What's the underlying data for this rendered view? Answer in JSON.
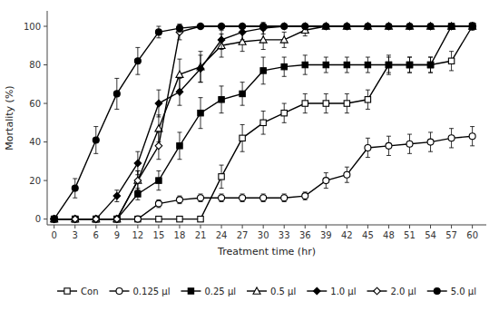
{
  "chart_data": {
    "type": "line",
    "xlabel": "Treatment time (hr)",
    "ylabel": "Mortality (%)",
    "x": [
      0,
      3,
      6,
      9,
      12,
      15,
      18,
      21,
      24,
      27,
      30,
      33,
      36,
      39,
      42,
      45,
      48,
      51,
      54,
      57,
      60
    ],
    "series": [
      {
        "name": "Con",
        "color": "black",
        "marker": "square-open",
        "values": [
          0,
          0,
          0,
          0,
          0,
          0,
          0,
          0,
          22,
          42,
          50,
          55,
          60,
          60,
          60,
          62,
          80,
          80,
          80,
          82,
          100
        ],
        "errors": [
          0,
          0,
          0,
          0,
          0,
          0,
          0,
          0,
          6,
          7,
          6,
          5,
          5,
          5,
          5,
          5,
          5,
          4,
          4,
          5,
          2
        ]
      },
      {
        "name": "0.125 μl",
        "color": "black",
        "marker": "circle-open",
        "values": [
          0,
          0,
          0,
          0,
          0,
          8,
          10,
          11,
          11,
          11,
          11,
          11,
          12,
          20,
          23,
          37,
          38,
          39,
          40,
          42,
          43
        ],
        "errors": [
          0,
          0,
          0,
          0,
          0,
          2,
          2,
          2,
          2,
          2,
          2,
          2,
          2,
          4,
          4,
          5,
          5,
          5,
          5,
          5,
          5
        ]
      },
      {
        "name": "0.25 μl",
        "color": "black",
        "marker": "square",
        "values": [
          0,
          0,
          0,
          0,
          13,
          20,
          38,
          55,
          62,
          65,
          77,
          79,
          80,
          80,
          80,
          80,
          80,
          80,
          80,
          100,
          100
        ],
        "errors": [
          0,
          0,
          0,
          0,
          3,
          5,
          7,
          8,
          7,
          6,
          7,
          5,
          5,
          4,
          4,
          4,
          4,
          4,
          4,
          0,
          0
        ]
      },
      {
        "name": "0.5 μl",
        "color": "black",
        "marker": "triangle-open",
        "values": [
          0,
          0,
          0,
          0,
          20,
          47,
          75,
          79,
          90,
          92,
          93,
          93,
          98,
          100,
          100,
          100,
          100,
          100,
          100,
          100,
          100
        ],
        "errors": [
          0,
          0,
          0,
          0,
          5,
          7,
          8,
          8,
          6,
          5,
          5,
          4,
          3,
          0,
          0,
          0,
          0,
          0,
          0,
          0,
          0
        ]
      },
      {
        "name": "1.0 μl",
        "color": "black",
        "marker": "diamond",
        "values": [
          0,
          0,
          0,
          12,
          29,
          60,
          66,
          78,
          93,
          97,
          99,
          100,
          100,
          100,
          100,
          100,
          100,
          100,
          100,
          100,
          100
        ],
        "errors": [
          0,
          0,
          0,
          3,
          6,
          7,
          7,
          7,
          5,
          4,
          3,
          0,
          0,
          0,
          0,
          0,
          0,
          0,
          0,
          0,
          0
        ]
      },
      {
        "name": "2.0 μl",
        "color": "black",
        "marker": "diamond-open",
        "values": [
          0,
          0,
          0,
          0,
          20,
          38,
          97,
          100,
          100,
          100,
          100,
          100,
          100,
          100,
          100,
          100,
          100,
          100,
          100,
          100,
          100
        ],
        "errors": [
          0,
          0,
          0,
          0,
          5,
          7,
          4,
          0,
          0,
          0,
          0,
          0,
          0,
          0,
          0,
          0,
          0,
          0,
          0,
          0,
          0
        ]
      },
      {
        "name": "5.0 μl",
        "color": "black",
        "marker": "circle",
        "values": [
          0,
          16,
          41,
          65,
          82,
          97,
          99,
          100,
          100,
          100,
          100,
          100,
          100,
          100,
          100,
          100,
          100,
          100,
          100,
          100,
          100
        ],
        "errors": [
          0,
          5,
          7,
          8,
          7,
          3,
          2,
          0,
          0,
          0,
          0,
          0,
          0,
          0,
          0,
          0,
          0,
          0,
          0,
          0,
          0
        ]
      }
    ],
    "xlim": [
      -1,
      62
    ],
    "ylim": [
      -3,
      108
    ],
    "xticks": [
      0,
      3,
      6,
      9,
      12,
      15,
      18,
      21,
      24,
      27,
      30,
      33,
      36,
      39,
      42,
      45,
      48,
      51,
      54,
      57,
      60
    ],
    "yticks": [
      0,
      20,
      40,
      60,
      80,
      100
    ],
    "grid": false,
    "legend": "bottom"
  }
}
